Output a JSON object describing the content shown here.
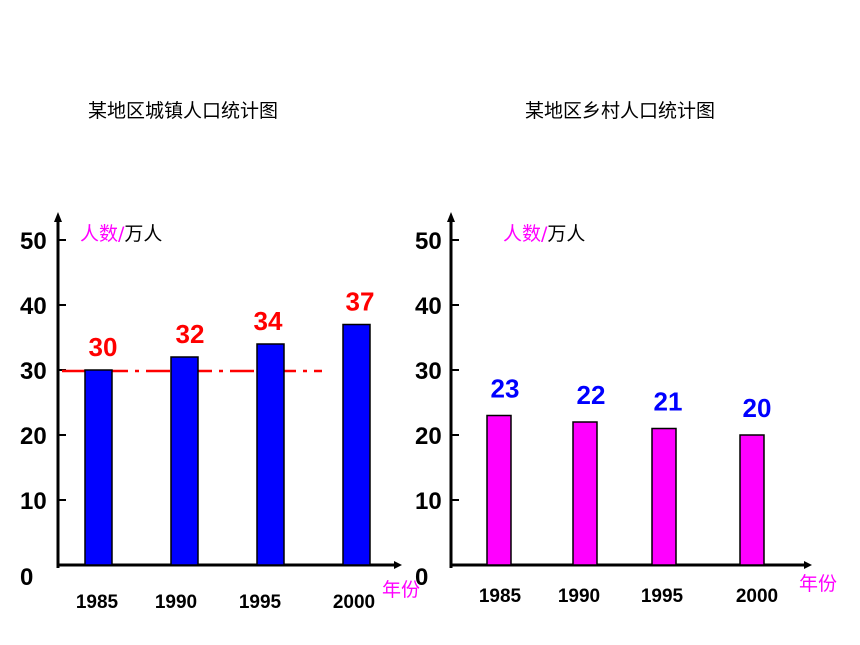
{
  "chart_data": [
    {
      "type": "bar",
      "title": "某地区城镇人口统计图",
      "categories": [
        "1985",
        "1990",
        "1995",
        "2000"
      ],
      "values": [
        30,
        32,
        34,
        37
      ],
      "data_labels": [
        "30",
        "32",
        "34",
        "37"
      ],
      "y_ticks": [
        "0",
        "10",
        "20",
        "30",
        "40",
        "50"
      ],
      "ylim": [
        0,
        50
      ],
      "ylabel_part1": "人数/",
      "ylabel_part2": "万人",
      "xlabel": "年份",
      "reference_line": 30,
      "bar_color": "#0000ff",
      "label_color": "#ff0000",
      "ylabel_color": "#ff00ff",
      "xlabel_color": "#ff00ff",
      "reference_line_color": "#ff0000",
      "grid": false
    },
    {
      "type": "bar",
      "title": "某地区乡村人口统计图",
      "categories": [
        "1985",
        "1990",
        "1995",
        "2000"
      ],
      "values": [
        23,
        22,
        21,
        20
      ],
      "data_labels": [
        "23",
        "22",
        "21",
        "20"
      ],
      "y_ticks": [
        "0",
        "10",
        "20",
        "30",
        "40",
        "50"
      ],
      "ylim": [
        0,
        50
      ],
      "ylabel_part1": "人数/",
      "ylabel_part2": "万人",
      "xlabel": "年份",
      "bar_color": "#ff00ff",
      "label_color": "#0000ff",
      "ylabel_color": "#ff00ff",
      "xlabel_color": "#ff00ff",
      "grid": false
    }
  ]
}
